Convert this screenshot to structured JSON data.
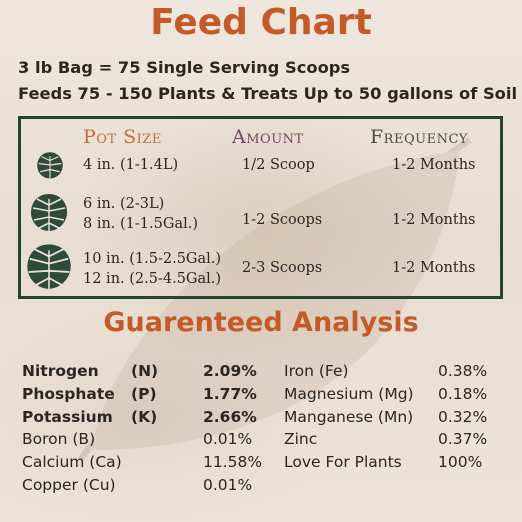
{
  "header": {
    "title": "Feed Chart",
    "line1": "3 lb Bag = 75 Single Serving Scoops",
    "line2": "Feeds 75 - 150 Plants & Treats Up to 50 gallons of Soil"
  },
  "feed_table": {
    "headers": {
      "pot_size": "Pot Size",
      "amount": "Amount",
      "frequency": "Frequency"
    },
    "rows": [
      {
        "icon": "monstera-leaf-small-icon",
        "pot_size": [
          "4 in. (1-1.4L)"
        ],
        "amount": "1/2 Scoop",
        "frequency": "1-2 Months"
      },
      {
        "icon": "monstera-leaf-medium-icon",
        "pot_size": [
          "6 in. (2-3L)",
          "8 in. (1-1.5Gal.)"
        ],
        "amount": "1-2 Scoops",
        "frequency": "1-2 Months"
      },
      {
        "icon": "monstera-leaf-large-icon",
        "pot_size": [
          "10 in. (1.5-2.5Gal.)",
          "12 in. (2.5-4.5Gal.)"
        ],
        "amount": "2-3 Scoops",
        "frequency": "1-2 Months"
      }
    ]
  },
  "analysis": {
    "title": "Guarenteed Analysis",
    "left": [
      {
        "name": "Nitrogen",
        "symbol": "(N)",
        "value": "2.09%",
        "bold": true
      },
      {
        "name": "Phosphate",
        "symbol": "(P)",
        "value": "1.77%",
        "bold": true
      },
      {
        "name": "Potassium",
        "symbol": "(K)",
        "value": "2.66%",
        "bold": true
      },
      {
        "name": "Boron (B)",
        "symbol": "",
        "value": "0.01%",
        "bold": false
      },
      {
        "name": "Calcium (Ca)",
        "symbol": "",
        "value": "11.58%",
        "bold": false
      },
      {
        "name": "Copper (Cu)",
        "symbol": "",
        "value": "0.01%",
        "bold": false
      }
    ],
    "right": [
      {
        "name": "Iron (Fe)",
        "value": "0.38%"
      },
      {
        "name": "Magnesium (Mg)",
        "value": "0.18%"
      },
      {
        "name": "Manganese (Mn)",
        "value": "0.32%"
      },
      {
        "name": "Zinc",
        "value": "0.37%"
      },
      {
        "name": "Love For Plants",
        "value": "100%"
      }
    ]
  },
  "colors": {
    "accent_orange": "#c45a28",
    "table_border_green": "#26432f",
    "leaf_green": "#2e4a3a",
    "pot_header": "#c86b42",
    "amount_header": "#7a3f6b",
    "frequency_header": "#4a4a4a"
  }
}
